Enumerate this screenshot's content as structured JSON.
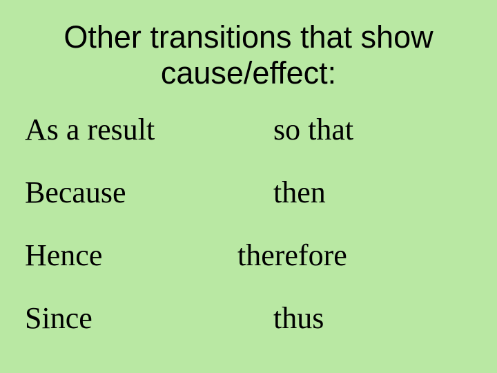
{
  "background_color": "#b9e8a3",
  "text_color": "#000000",
  "title": {
    "line1": "Other transitions that show",
    "line2": "cause/effect:",
    "font_family": "Arial",
    "font_size_pt": 34
  },
  "body": {
    "font_family": "Times New Roman",
    "font_size_pt": 33
  },
  "rows": [
    {
      "left": "As a result",
      "right": "so that"
    },
    {
      "left": "Because",
      "right": "then"
    },
    {
      "left": "Hence",
      "right": "therefore"
    },
    {
      "left": "Since",
      "right": "thus"
    }
  ]
}
